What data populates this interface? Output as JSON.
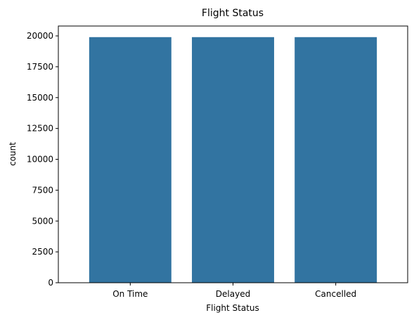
{
  "chart_data": {
    "type": "bar",
    "title": "Flight Status",
    "xlabel": "Flight Status",
    "ylabel": "count",
    "categories": [
      "On Time",
      "Delayed",
      "Cancelled"
    ],
    "values": [
      19900,
      19900,
      19900
    ],
    "ylim": [
      0,
      20800
    ],
    "yticks": [
      0,
      2500,
      5000,
      7500,
      10000,
      12500,
      15000,
      17500,
      20000
    ],
    "grid": false,
    "legend": "none",
    "bar_color": "#3274a1"
  }
}
